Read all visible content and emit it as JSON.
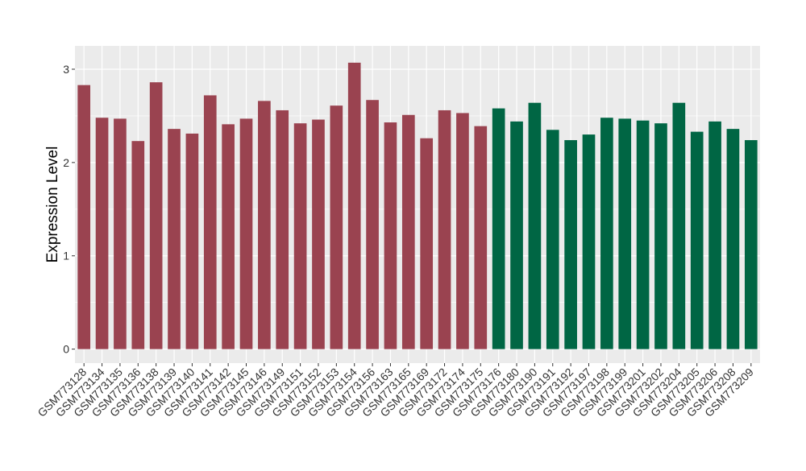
{
  "chart_data": {
    "type": "bar",
    "title": "",
    "xlabel": "",
    "ylabel": "Expression Level",
    "ylim": [
      -0.15,
      3.25
    ],
    "yticks": [
      0,
      1,
      2,
      3
    ],
    "grid": true,
    "legend": "none",
    "colors": {
      "group_a": "#9A4350",
      "group_b": "#006644",
      "panel": "#EBEBEB",
      "grid": "#FFFFFF"
    },
    "categories": [
      "GSM773128",
      "GSM773134",
      "GSM773135",
      "GSM773136",
      "GSM773138",
      "GSM773139",
      "GSM773140",
      "GSM773141",
      "GSM773142",
      "GSM773145",
      "GSM773146",
      "GSM773149",
      "GSM773151",
      "GSM773152",
      "GSM773153",
      "GSM773154",
      "GSM773156",
      "GSM773163",
      "GSM773165",
      "GSM773169",
      "GSM773172",
      "GSM773174",
      "GSM773175",
      "GSM773176",
      "GSM773180",
      "GSM773190",
      "GSM773191",
      "GSM773192",
      "GSM773197",
      "GSM773198",
      "GSM773199",
      "GSM773201",
      "GSM773202",
      "GSM773204",
      "GSM773205",
      "GSM773206",
      "GSM773208",
      "GSM773209"
    ],
    "values": [
      2.83,
      2.48,
      2.47,
      2.23,
      2.86,
      2.36,
      2.31,
      2.72,
      2.41,
      2.47,
      2.66,
      2.56,
      2.42,
      2.46,
      2.61,
      3.07,
      2.67,
      2.43,
      2.51,
      2.26,
      2.56,
      2.53,
      2.39,
      2.58,
      2.44,
      2.64,
      2.35,
      2.24,
      2.3,
      2.48,
      2.47,
      2.45,
      2.42,
      2.64,
      2.33,
      2.44,
      2.36,
      2.24
    ],
    "groups": [
      "a",
      "a",
      "a",
      "a",
      "a",
      "a",
      "a",
      "a",
      "a",
      "a",
      "a",
      "a",
      "a",
      "a",
      "a",
      "a",
      "a",
      "a",
      "a",
      "a",
      "a",
      "a",
      "a",
      "b",
      "b",
      "b",
      "b",
      "b",
      "b",
      "b",
      "b",
      "b",
      "b",
      "b",
      "b",
      "b",
      "b",
      "b"
    ]
  }
}
